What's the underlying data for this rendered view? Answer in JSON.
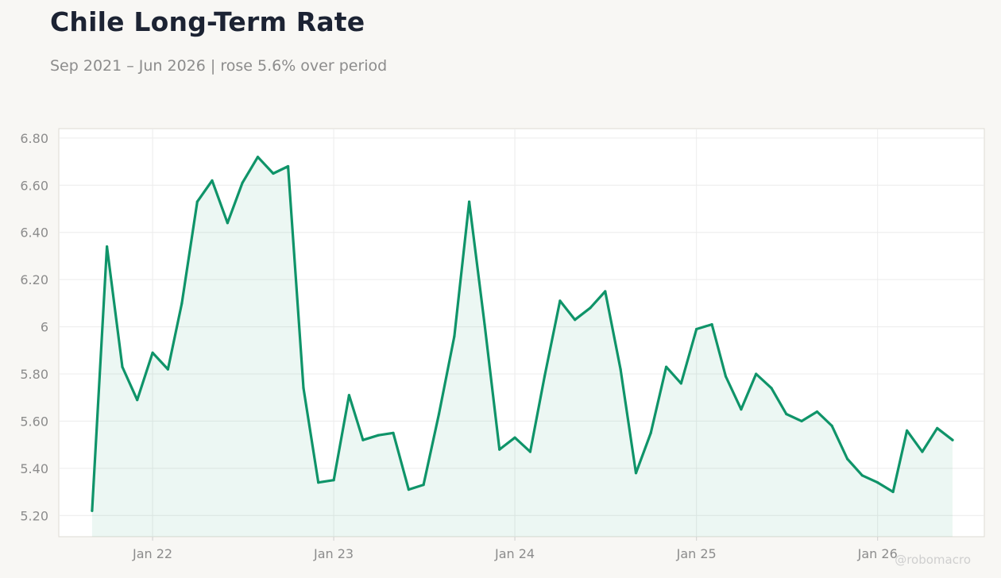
{
  "title": "Chile Long-Term Rate",
  "subtitle": "Sep 2021 – Jun 2026 | rose 5.6% over period",
  "watermark": "@robomacro",
  "colors": {
    "line": "#0f9469",
    "fill": "#0f9469",
    "background": "#f8f7f4",
    "plot_background": "#ffffff",
    "grid": "#ececec",
    "axis_text": "#8c8c8c"
  },
  "chart_data": {
    "type": "area",
    "title": "Chile Long-Term Rate",
    "subtitle": "Sep 2021 – Jun 2026 | rose 5.6% over period",
    "xlabel": "",
    "ylabel": "",
    "ylim": [
      5.11,
      6.84
    ],
    "xlim": [
      "2021-06-26",
      "2026-08-04"
    ],
    "grid": true,
    "legend": "none",
    "y_ticks": [
      5.2,
      5.4,
      5.6,
      5.8,
      6.0,
      6.2,
      6.4,
      6.6,
      6.8
    ],
    "y_tick_labels": [
      "5.20",
      "5.40",
      "5.60",
      "5.80",
      "6",
      "6.20",
      "6.40",
      "6.60",
      "6.80"
    ],
    "x_ticks": [
      "2022-01-01",
      "2023-01-01",
      "2024-01-01",
      "2025-01-01",
      "2026-01-01"
    ],
    "x_tick_labels": [
      "Jan 22",
      "Jan 23",
      "Jan 24",
      "Jan 25",
      "Jan 26"
    ],
    "x": [
      "2021-09-01",
      "2021-10-01",
      "2021-11-01",
      "2021-12-01",
      "2022-01-01",
      "2022-02-01",
      "2022-03-01",
      "2022-04-01",
      "2022-05-01",
      "2022-06-01",
      "2022-07-01",
      "2022-08-01",
      "2022-09-01",
      "2022-10-01",
      "2022-11-01",
      "2022-12-01",
      "2023-01-01",
      "2023-02-01",
      "2023-03-01",
      "2023-04-01",
      "2023-05-01",
      "2023-06-01",
      "2023-07-01",
      "2023-08-01",
      "2023-09-01",
      "2023-10-01",
      "2023-11-01",
      "2023-12-01",
      "2024-01-01",
      "2024-02-01",
      "2024-03-01",
      "2024-04-01",
      "2024-05-01",
      "2024-06-01",
      "2024-07-01",
      "2024-08-01",
      "2024-09-01",
      "2024-10-01",
      "2024-11-01",
      "2024-12-01",
      "2025-01-01",
      "2025-02-01",
      "2025-03-01",
      "2025-04-01",
      "2025-05-01",
      "2025-06-01",
      "2025-07-01",
      "2025-08-01",
      "2025-09-01",
      "2025-10-01",
      "2025-11-01",
      "2025-12-01",
      "2026-01-01",
      "2026-02-01",
      "2026-03-01",
      "2026-04-01",
      "2026-05-01",
      "2026-06-01"
    ],
    "series": [
      {
        "values": [
          5.22,
          6.34,
          5.83,
          5.69,
          5.89,
          5.82,
          6.1,
          6.53,
          6.62,
          6.44,
          6.61,
          6.72,
          6.65,
          6.68,
          5.74,
          5.34,
          5.35,
          5.71,
          5.52,
          5.54,
          5.55,
          5.31,
          5.33,
          5.63,
          5.96,
          6.53,
          6.01,
          5.48,
          5.53,
          5.47,
          5.79,
          6.11,
          6.03,
          6.08,
          6.15,
          5.82,
          5.38,
          5.55,
          5.83,
          5.76,
          5.99,
          6.01,
          5.79,
          5.65,
          5.8,
          5.74,
          5.63,
          5.6,
          5.64,
          5.58,
          5.44,
          5.37,
          5.34,
          5.3,
          5.56,
          5.47,
          5.57,
          5.52
        ]
      }
    ]
  }
}
